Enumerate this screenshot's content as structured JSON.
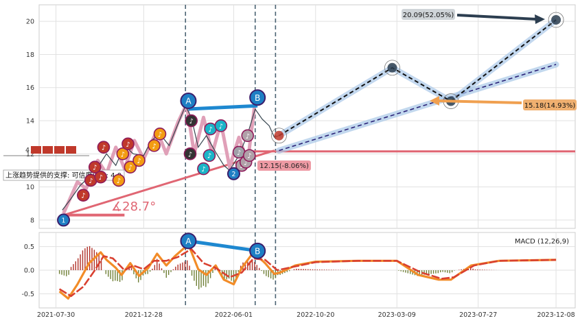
{
  "chart_data": [
    {
      "type": "line",
      "panel": "price",
      "ylim": [
        7.5,
        21
      ],
      "yticks": [
        8,
        10,
        12,
        14,
        16,
        18,
        20
      ],
      "xlim": [
        "2021-07-01",
        "2024-01-10"
      ],
      "xticks": [
        "2021-07-30",
        "2021-12-28",
        "2022-06-01",
        "2022-10-20",
        "2023-03-09",
        "2023-07-27",
        "2023-12-08"
      ],
      "grid": true,
      "dashed_vlines": [
        "2022-03-10",
        "2022-07-08",
        "2022-08-12"
      ],
      "points": {
        "A": {
          "date": "2022-03-15",
          "value": 15.2
        },
        "B": {
          "date": "2022-07-12",
          "value": 15.4
        },
        "p1": {
          "date": "2021-08-12",
          "value": 8.0
        },
        "p2": {
          "date": "2022-06-01",
          "value": 10.8
        }
      },
      "price_series": [
        [
          "2021-08-10",
          8.6
        ],
        [
          "2021-08-25",
          9.3
        ],
        [
          "2021-09-10",
          10.1
        ],
        [
          "2021-09-25",
          10.6
        ],
        [
          "2021-10-10",
          11.2
        ],
        [
          "2021-10-25",
          12.0
        ],
        [
          "2021-11-10",
          11.3
        ],
        [
          "2021-11-25",
          12.5
        ],
        [
          "2021-12-10",
          12.0
        ],
        [
          "2021-12-28",
          11.9
        ],
        [
          "2022-01-10",
          12.8
        ],
        [
          "2022-01-25",
          13.2
        ],
        [
          "2022-02-10",
          12.5
        ],
        [
          "2022-02-25",
          13.8
        ],
        [
          "2022-03-10",
          14.9
        ],
        [
          "2022-03-20",
          14.2
        ],
        [
          "2022-04-01",
          12.4
        ],
        [
          "2022-04-15",
          13.1
        ],
        [
          "2022-05-01",
          12.1
        ],
        [
          "2022-05-15",
          11.3
        ],
        [
          "2022-05-25",
          11.0
        ],
        [
          "2022-06-10",
          11.9
        ],
        [
          "2022-06-25",
          13.2
        ],
        [
          "2022-07-08",
          14.7
        ],
        [
          "2022-07-20",
          14.1
        ],
        [
          "2022-08-01",
          13.7
        ],
        [
          "2022-08-10",
          13.0
        ],
        [
          "2022-08-18",
          13.1
        ]
      ],
      "support": {
        "value": 12.15,
        "label": "12.15(-8.06%)",
        "start": "2022-06-01"
      },
      "trend_angle_label": "∡28.7°",
      "forecast": [
        {
          "date": "2022-08-18",
          "value": 13.1
        },
        {
          "date": "2023-03-01",
          "value": 17.2
        },
        {
          "date": "2023-06-10",
          "value": 15.18
        },
        {
          "date": "2023-12-08",
          "value": 20.09
        }
      ],
      "trend_channel": [
        {
          "date": "2022-08-18",
          "value": 12.2
        },
        {
          "date": "2023-12-08",
          "value": 17.4
        }
      ],
      "callouts": [
        {
          "text": "20.09(52.05%)",
          "style": "dark"
        },
        {
          "text": "15.18(14.93%)",
          "style": "orange"
        }
      ],
      "support_note": "上涨趋势提供的支撑: 可信度评分: 4.0",
      "left_label": "4"
    },
    {
      "type": "line",
      "panel": "macd",
      "legend": "MACD (12,26,9)",
      "ylim": [
        -0.8,
        0.8
      ],
      "yticks": [
        0.5,
        0.0,
        -0.5
      ],
      "xlim": [
        "2021-07-01",
        "2024-01-10"
      ],
      "points": {
        "A": {
          "date": "2022-03-15",
          "value": 0.62
        },
        "B": {
          "date": "2022-07-12",
          "value": 0.41
        }
      },
      "dif": [
        [
          "2021-08-05",
          -0.45
        ],
        [
          "2021-08-20",
          -0.6
        ],
        [
          "2021-09-05",
          -0.3
        ],
        [
          "2021-09-25",
          0.15
        ],
        [
          "2021-10-15",
          0.38
        ],
        [
          "2021-10-25",
          0.22
        ],
        [
          "2021-11-10",
          0.05
        ],
        [
          "2021-11-20",
          -0.1
        ],
        [
          "2021-12-05",
          0.15
        ],
        [
          "2021-12-20",
          -0.12
        ],
        [
          "2022-01-05",
          0.05
        ],
        [
          "2022-01-20",
          0.35
        ],
        [
          "2022-02-05",
          0.1
        ],
        [
          "2022-02-20",
          0.3
        ],
        [
          "2022-03-15",
          0.55
        ],
        [
          "2022-04-01",
          0.02
        ],
        [
          "2022-04-15",
          -0.1
        ],
        [
          "2022-05-01",
          0.1
        ],
        [
          "2022-05-15",
          -0.2
        ],
        [
          "2022-06-01",
          -0.3
        ],
        [
          "2022-06-15",
          0.05
        ],
        [
          "2022-07-05",
          0.38
        ],
        [
          "2022-07-25",
          0.15
        ],
        [
          "2022-08-10",
          -0.08
        ],
        [
          "2022-08-20",
          -0.05
        ],
        [
          "2022-09-15",
          0.1
        ],
        [
          "2022-10-20",
          0.18
        ],
        [
          "2023-01-01",
          0.2
        ],
        [
          "2023-03-09",
          0.2
        ],
        [
          "2023-04-15",
          -0.1
        ],
        [
          "2023-05-20",
          -0.2
        ],
        [
          "2023-06-10",
          -0.2
        ],
        [
          "2023-07-15",
          0.1
        ],
        [
          "2023-09-01",
          0.2
        ],
        [
          "2023-12-08",
          0.22
        ]
      ],
      "dea": [
        [
          "2021-08-05",
          -0.4
        ],
        [
          "2021-08-25",
          -0.55
        ],
        [
          "2021-09-15",
          -0.35
        ],
        [
          "2021-10-05",
          0.0
        ],
        [
          "2021-10-20",
          0.3
        ],
        [
          "2021-11-05",
          0.25
        ],
        [
          "2021-11-25",
          0.0
        ],
        [
          "2021-12-10",
          0.1
        ],
        [
          "2021-12-28",
          0.02
        ],
        [
          "2022-01-15",
          0.2
        ],
        [
          "2022-02-05",
          0.2
        ],
        [
          "2022-02-25",
          0.28
        ],
        [
          "2022-03-20",
          0.45
        ],
        [
          "2022-04-10",
          0.15
        ],
        [
          "2022-05-01",
          0.05
        ],
        [
          "2022-05-25",
          -0.15
        ],
        [
          "2022-06-15",
          -0.05
        ],
        [
          "2022-07-05",
          0.25
        ],
        [
          "2022-07-25",
          0.22
        ],
        [
          "2022-08-15",
          0.0
        ],
        [
          "2022-09-15",
          0.08
        ],
        [
          "2022-10-20",
          0.17
        ],
        [
          "2023-01-01",
          0.2
        ],
        [
          "2023-03-09",
          0.2
        ],
        [
          "2023-04-20",
          -0.05
        ],
        [
          "2023-05-25",
          -0.18
        ],
        [
          "2023-06-15",
          -0.15
        ],
        [
          "2023-07-20",
          0.1
        ],
        [
          "2023-09-01",
          0.2
        ],
        [
          "2023-12-08",
          0.22
        ]
      ]
    }
  ],
  "colors": {
    "price": "#36454f",
    "forecast": "#111111",
    "halo": "#a9c8e8",
    "support": "#e06673",
    "pink": "#e0a0b8",
    "ab_line": "#1e88d0",
    "ab_fill": "#1e7fc4",
    "dif": "#f28c28",
    "dea": "#d94030",
    "channel": "#2a2278"
  }
}
